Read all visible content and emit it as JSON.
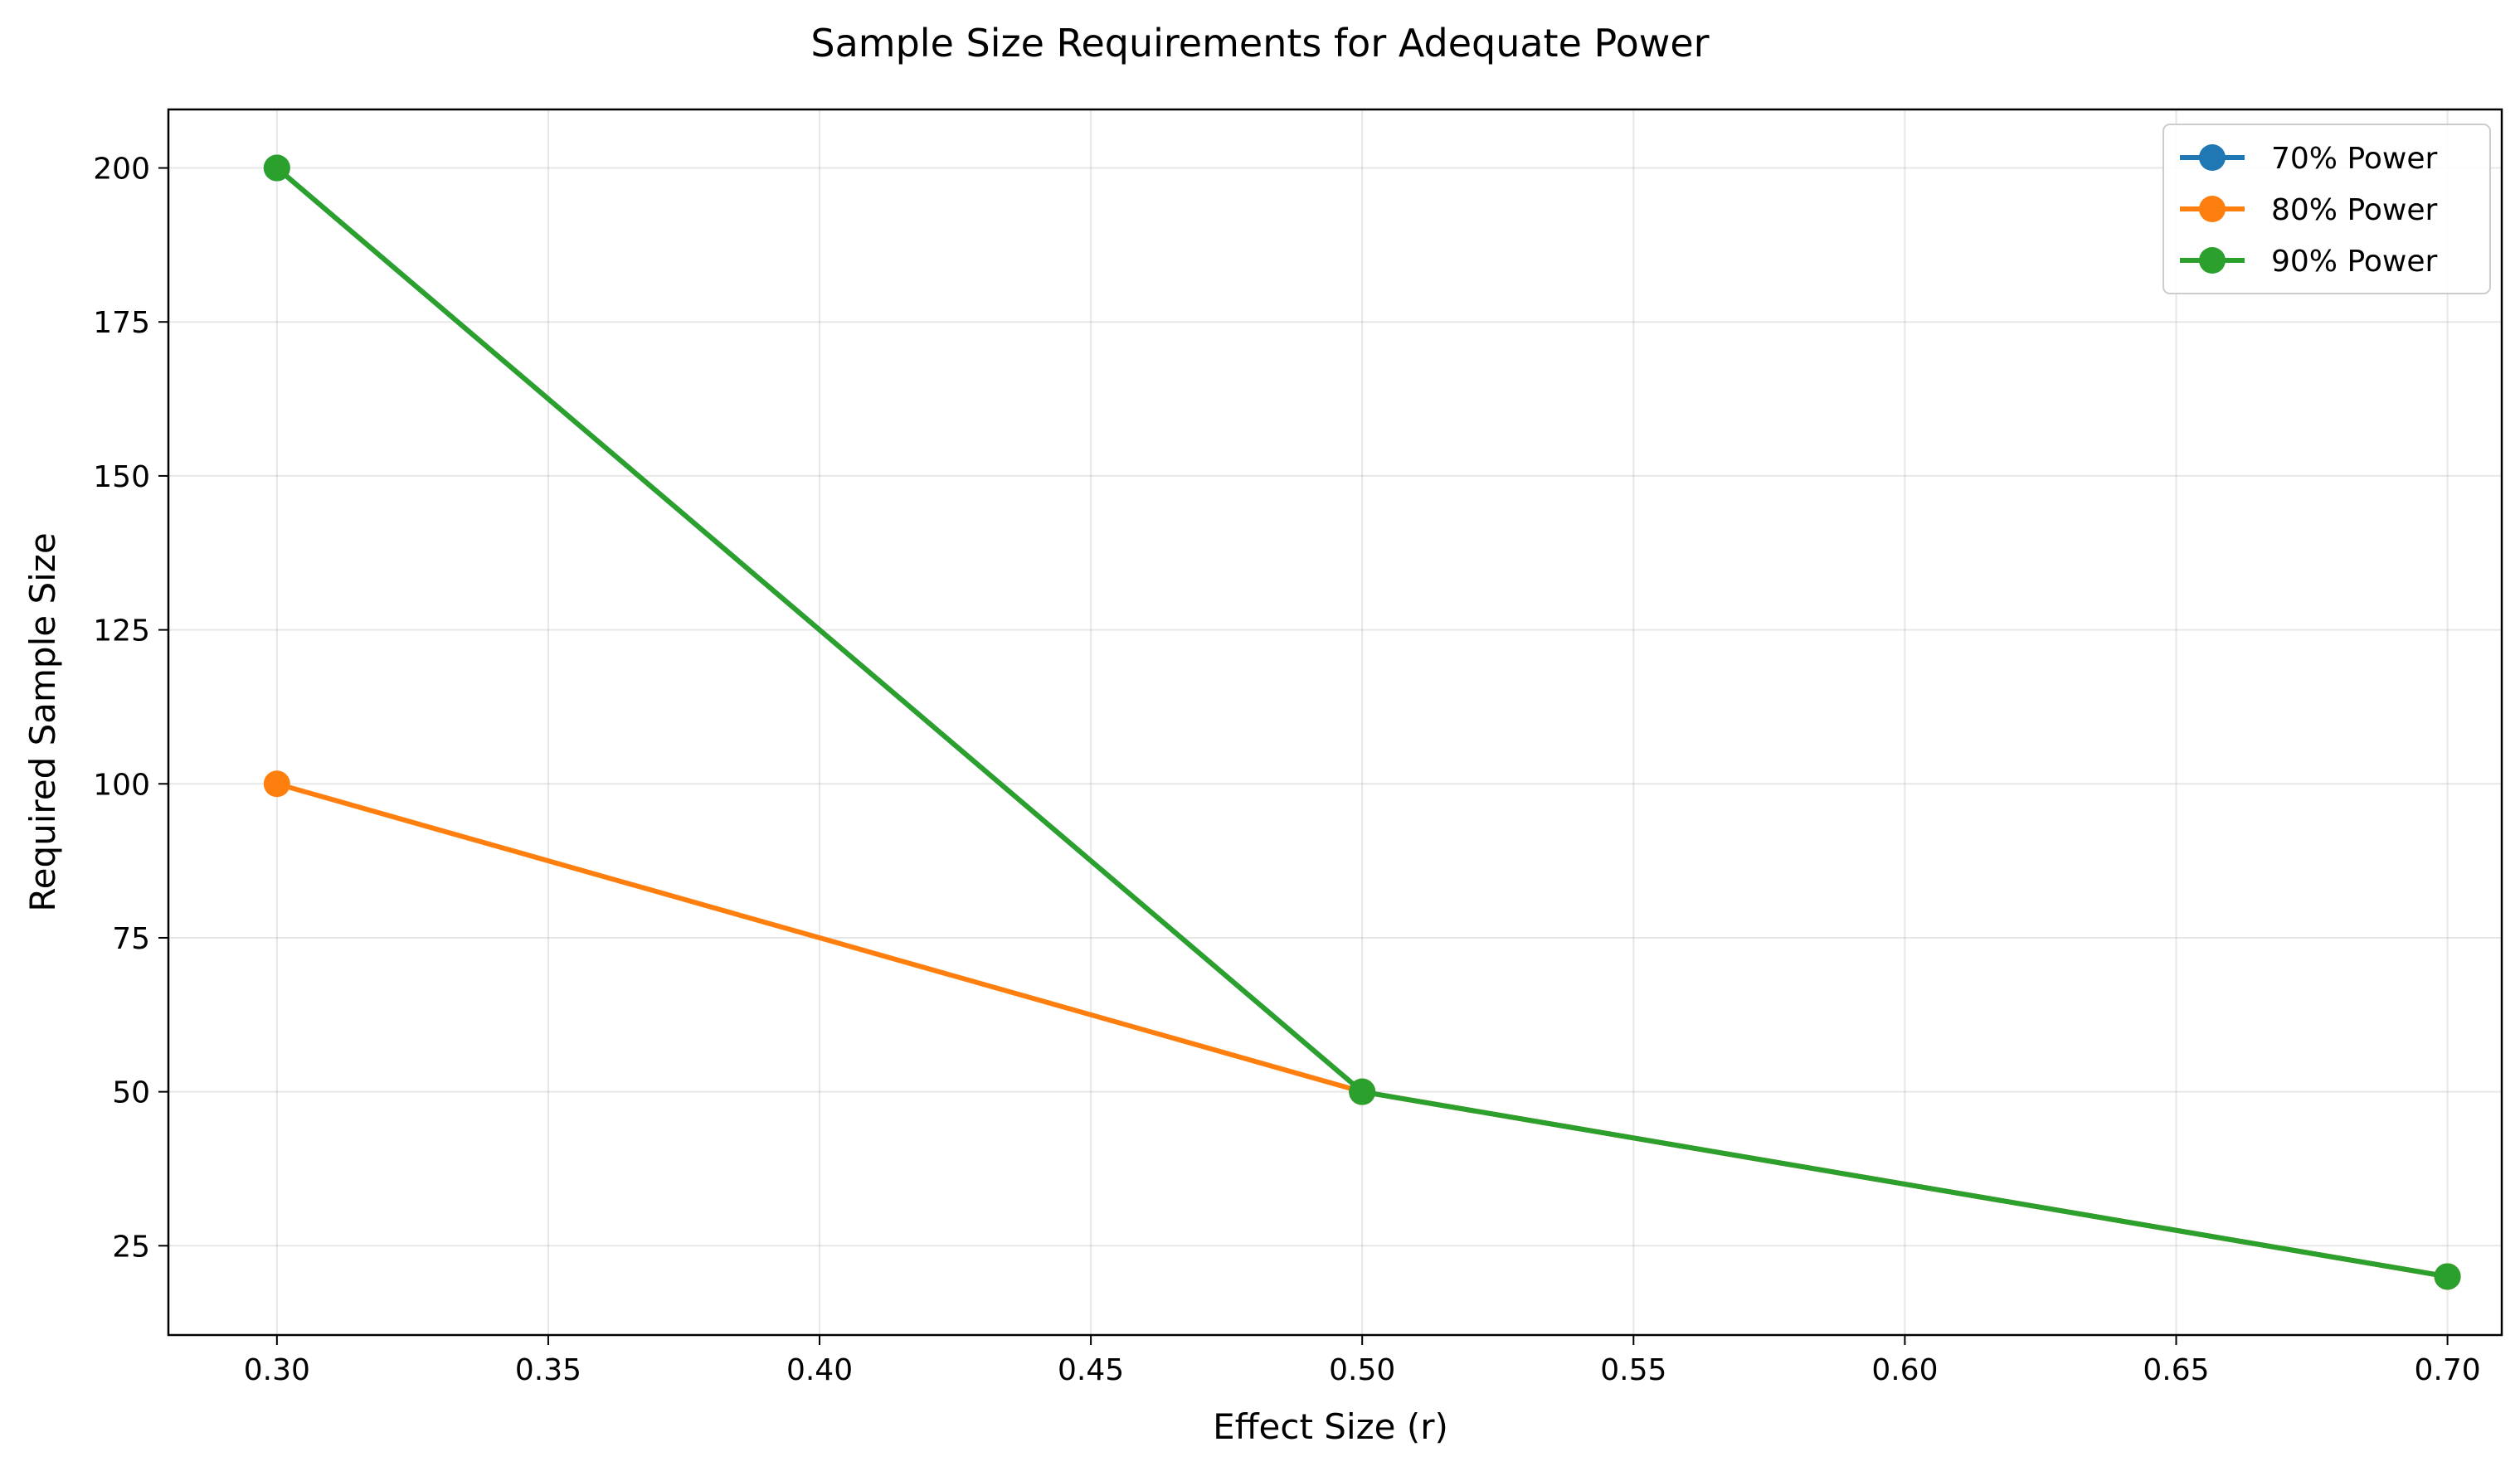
{
  "chart_data": {
    "type": "line",
    "title": "Sample Size Requirements for Adequate Power",
    "xlabel": "Effect Size (r)",
    "ylabel": "Required Sample Size",
    "xlim": [
      0.28,
      0.71
    ],
    "ylim": [
      10.5,
      209.5
    ],
    "xticks": [
      0.3,
      0.35,
      0.4,
      0.45,
      0.5,
      0.55,
      0.6,
      0.65,
      0.7
    ],
    "xtick_labels": [
      "0.30",
      "0.35",
      "0.40",
      "0.45",
      "0.50",
      "0.55",
      "0.60",
      "0.65",
      "0.70"
    ],
    "yticks": [
      25,
      50,
      75,
      100,
      125,
      150,
      175,
      200
    ],
    "ytick_labels": [
      "25",
      "50",
      "75",
      "100",
      "125",
      "150",
      "175",
      "200"
    ],
    "grid": true,
    "legend_position": "top-right",
    "series": [
      {
        "name": "70% Power",
        "color": "#1f77b4",
        "x": [
          0.3,
          0.5,
          0.7
        ],
        "y": [
          200,
          50,
          20
        ]
      },
      {
        "name": "80% Power",
        "color": "#ff7f0e",
        "x": [
          0.3,
          0.5,
          0.7
        ],
        "y": [
          100,
          50,
          20
        ]
      },
      {
        "name": "90% Power",
        "color": "#2ca02c",
        "x": [
          0.3,
          0.5,
          0.7
        ],
        "y": [
          200,
          50,
          20
        ]
      }
    ]
  }
}
